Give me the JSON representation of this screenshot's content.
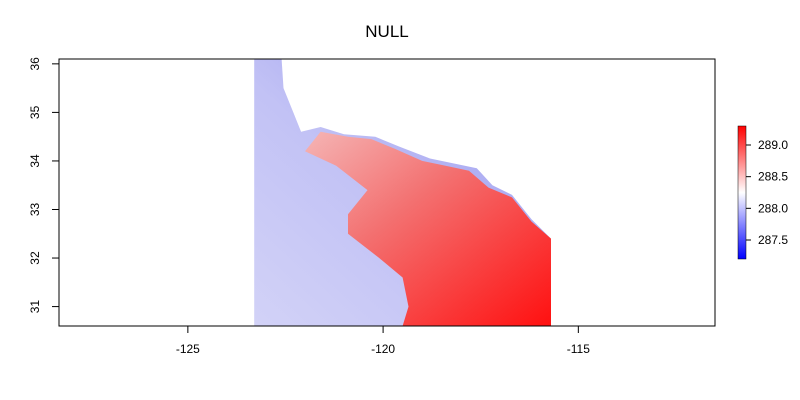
{
  "title": "NULL",
  "chart_data": {
    "type": "heatmap",
    "title": "NULL",
    "xlabel": "",
    "ylabel": "",
    "xlim": [
      -128.3,
      -111.5
    ],
    "ylim": [
      30.6,
      36.1
    ],
    "xticks": [
      -125,
      -120,
      -115
    ],
    "xtick_labels": [
      "-125",
      "-120",
      "-115"
    ],
    "yticks": [
      31,
      32,
      33,
      34,
      35,
      36
    ],
    "ytick_labels": [
      "31",
      "32",
      "33",
      "34",
      "35",
      "36"
    ],
    "colorbar": {
      "range": [
        287.2,
        289.3
      ],
      "ticks": [
        287.5,
        288.0,
        288.5,
        289.0
      ],
      "tick_labels": [
        "287.5",
        "288.0",
        "288.5",
        "289.0"
      ],
      "colors": [
        "#0000ff",
        "#ffffff",
        "#ff0000"
      ],
      "placement": "right"
    },
    "data_extent": {
      "lon_min": -123.3,
      "lon_max": -115.7,
      "lat_min": 30.6,
      "lat_max": 36.1
    },
    "region_boundary": [
      [
        -123.3,
        36.1
      ],
      [
        -122.6,
        36.1
      ],
      [
        -122.55,
        35.5
      ],
      [
        -122.3,
        35.0
      ],
      [
        -122.1,
        34.6
      ],
      [
        -121.6,
        34.7
      ],
      [
        -121.0,
        34.55
      ],
      [
        -120.2,
        34.5
      ],
      [
        -119.6,
        34.3
      ],
      [
        -118.8,
        34.05
      ],
      [
        -118.2,
        33.95
      ],
      [
        -117.6,
        33.85
      ],
      [
        -117.2,
        33.5
      ],
      [
        -116.7,
        33.3
      ],
      [
        -116.2,
        32.8
      ],
      [
        -115.7,
        32.4
      ],
      [
        -115.7,
        30.6
      ],
      [
        -123.3,
        30.6
      ]
    ],
    "warm_boundary": [
      [
        -122.0,
        34.2
      ],
      [
        -121.6,
        34.6
      ],
      [
        -120.9,
        34.5
      ],
      [
        -120.3,
        34.45
      ],
      [
        -119.7,
        34.25
      ],
      [
        -119.0,
        34.0
      ],
      [
        -118.4,
        33.9
      ],
      [
        -117.8,
        33.8
      ],
      [
        -117.3,
        33.45
      ],
      [
        -116.7,
        33.25
      ],
      [
        -116.2,
        32.75
      ],
      [
        -115.7,
        32.4
      ],
      [
        -115.7,
        30.6
      ],
      [
        -119.5,
        30.6
      ],
      [
        -119.35,
        31.0
      ],
      [
        -119.5,
        31.6
      ],
      [
        -120.1,
        32.0
      ],
      [
        -120.9,
        32.5
      ],
      [
        -120.9,
        32.9
      ],
      [
        -120.4,
        33.4
      ],
      [
        -121.2,
        33.9
      ],
      [
        -122.0,
        34.2
      ]
    ]
  }
}
